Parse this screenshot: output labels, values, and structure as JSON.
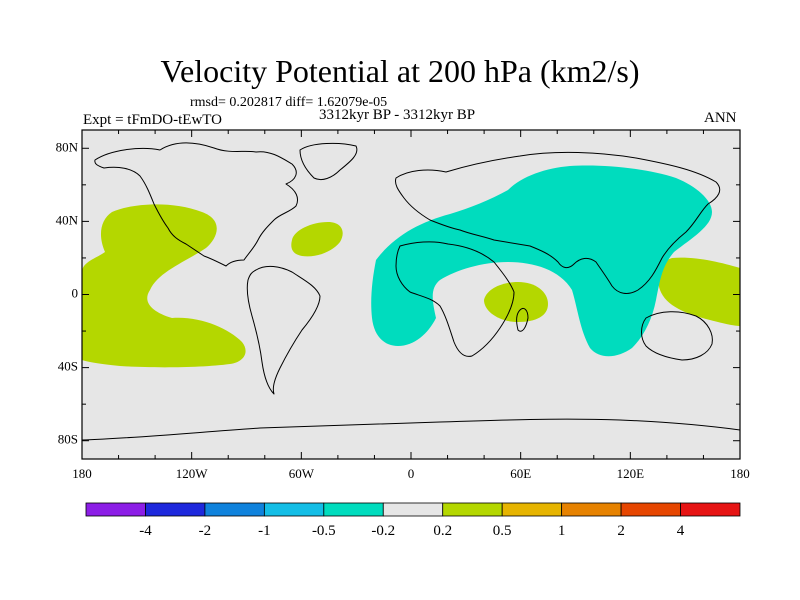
{
  "title": "Velocity Potential at 200 hPa (km2/s)",
  "stats": "rmsd= 0.202817 diff= 1.62079e-05",
  "experiment": "Expt = tFmDO-tEwTO",
  "period": "3312kyr BP - 3312kyr BP",
  "season": "ANN",
  "axes": {
    "lat_labels": [
      "80N",
      "40N",
      "0",
      "40S",
      "80S"
    ],
    "lat_values": [
      80,
      40,
      0,
      -40,
      -80
    ],
    "lon_labels": [
      "180",
      "120W",
      "60W",
      "0",
      "60E",
      "120E",
      "180"
    ],
    "lon_values": [
      -180,
      -120,
      -60,
      0,
      60,
      120,
      180
    ]
  },
  "colorbar": {
    "colors": [
      "#8c1ee6",
      "#1e28dc",
      "#0f82dc",
      "#14bee6",
      "#00dcbe",
      "#e6e6e6",
      "#b4d700",
      "#e6b400",
      "#e68200",
      "#e64600",
      "#e61414"
    ],
    "labels": [
      "-4",
      "-2",
      "-1",
      "-0.5",
      "-0.2",
      "0.2",
      "0.5",
      "1",
      "2",
      "4"
    ]
  },
  "colors": {
    "background_field": "#e6e6e6",
    "negative_region": "#00dcbe",
    "positive_region": "#b4d700"
  }
}
